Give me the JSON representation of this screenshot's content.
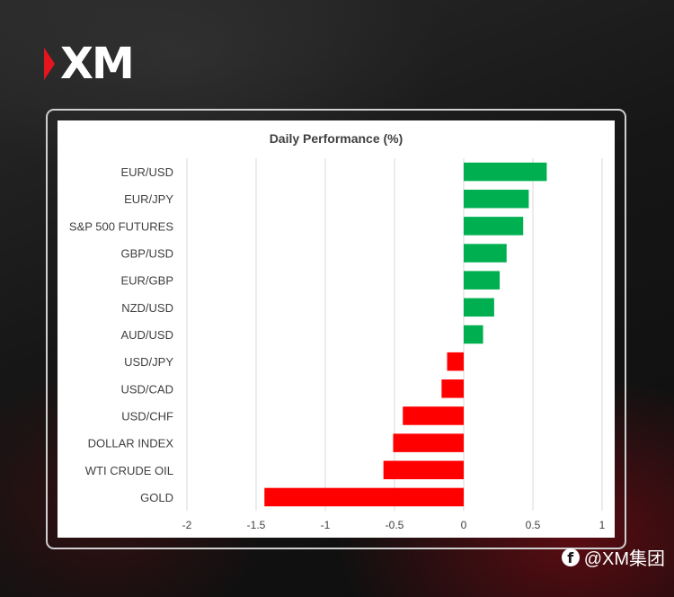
{
  "brand": {
    "logo_text": "XM",
    "logo_color": "#e4151f"
  },
  "footer": {
    "social_icon": "facebook-icon",
    "handle": "@XM集团"
  },
  "chart_data": {
    "type": "bar",
    "orientation": "horizontal",
    "title": "Daily Performance (%)",
    "xlabel": "",
    "ylabel": "",
    "xlim": [
      -2,
      1
    ],
    "xticks": [
      -2,
      -1.5,
      -1,
      -0.5,
      0,
      0.5,
      1
    ],
    "xtick_labels": [
      "-2",
      "-1.5",
      "-1",
      "-0.5",
      "0",
      "0.5",
      "1"
    ],
    "grid": "vertical",
    "legend": "none",
    "positive_color": "#00b050",
    "negative_color": "#ff0000",
    "categories": [
      "EUR/USD",
      "EUR/JPY",
      "S&P 500 FUTURES",
      "GBP/USD",
      "EUR/GBP",
      "NZD/USD",
      "AUD/USD",
      "USD/JPY",
      "USD/CAD",
      "USD/CHF",
      "DOLLAR INDEX",
      "WTI CRUDE OIL",
      "GOLD"
    ],
    "values": [
      0.6,
      0.47,
      0.43,
      0.31,
      0.26,
      0.22,
      0.14,
      -0.12,
      -0.16,
      -0.44,
      -0.51,
      -0.58,
      -1.44
    ]
  }
}
